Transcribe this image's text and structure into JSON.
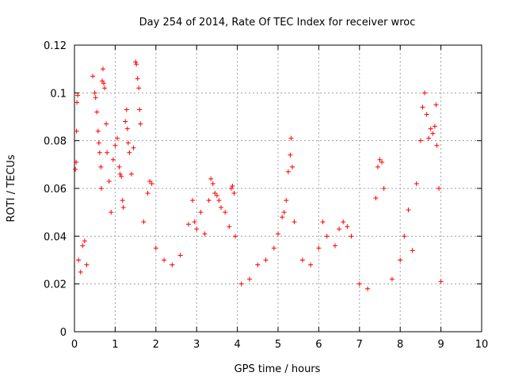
{
  "chart_data": {
    "type": "scatter",
    "title": "Day 254 of 2014, Rate Of TEC Index for receiver wroc",
    "xlabel": "GPS time / hours",
    "ylabel": "ROTI / TECUs",
    "xlim": [
      0,
      10
    ],
    "ylim": [
      0,
      0.12
    ],
    "xticks": [
      "0",
      "1",
      "2",
      "3",
      "4",
      "5",
      "6",
      "7",
      "8",
      "9",
      "10"
    ],
    "yticks": [
      "0",
      "0.02",
      "0.04",
      "0.06",
      "0.08",
      "0.1",
      "0.12"
    ],
    "grid": true,
    "marker": "+",
    "color": "#ff0000",
    "series": [
      {
        "name": "ROTI",
        "points": [
          [
            0.02,
            0.068
          ],
          [
            0.04,
            0.071
          ],
          [
            0.06,
            0.096
          ],
          [
            0.08,
            0.099
          ],
          [
            0.05,
            0.084
          ],
          [
            0.1,
            0.03
          ],
          [
            0.15,
            0.025
          ],
          [
            0.2,
            0.036
          ],
          [
            0.25,
            0.038
          ],
          [
            0.3,
            0.028
          ],
          [
            0.45,
            0.107
          ],
          [
            0.5,
            0.1
          ],
          [
            0.52,
            0.098
          ],
          [
            0.55,
            0.092
          ],
          [
            0.58,
            0.084
          ],
          [
            0.6,
            0.079
          ],
          [
            0.62,
            0.075
          ],
          [
            0.65,
            0.069
          ],
          [
            0.66,
            0.06
          ],
          [
            0.68,
            0.105
          ],
          [
            0.7,
            0.11
          ],
          [
            0.72,
            0.104
          ],
          [
            0.74,
            0.102
          ],
          [
            0.78,
            0.087
          ],
          [
            0.8,
            0.075
          ],
          [
            0.85,
            0.063
          ],
          [
            0.9,
            0.05
          ],
          [
            0.95,
            0.072
          ],
          [
            1.0,
            0.078
          ],
          [
            1.05,
            0.081
          ],
          [
            1.1,
            0.069
          ],
          [
            1.12,
            0.066
          ],
          [
            1.15,
            0.065
          ],
          [
            1.18,
            0.055
          ],
          [
            1.2,
            0.052
          ],
          [
            1.25,
            0.088
          ],
          [
            1.28,
            0.093
          ],
          [
            1.3,
            0.085
          ],
          [
            1.32,
            0.079
          ],
          [
            1.35,
            0.075
          ],
          [
            1.4,
            0.066
          ],
          [
            1.45,
            0.077
          ],
          [
            1.5,
            0.113
          ],
          [
            1.52,
            0.112
          ],
          [
            1.55,
            0.106
          ],
          [
            1.58,
            0.102
          ],
          [
            1.6,
            0.093
          ],
          [
            1.62,
            0.087
          ],
          [
            1.7,
            0.046
          ],
          [
            1.8,
            0.058
          ],
          [
            1.85,
            0.063
          ],
          [
            1.9,
            0.062
          ],
          [
            2.0,
            0.035
          ],
          [
            2.2,
            0.03
          ],
          [
            2.4,
            0.028
          ],
          [
            2.6,
            0.032
          ],
          [
            2.8,
            0.045
          ],
          [
            2.9,
            0.055
          ],
          [
            2.95,
            0.046
          ],
          [
            3.0,
            0.043
          ],
          [
            3.1,
            0.05
          ],
          [
            3.2,
            0.041
          ],
          [
            3.3,
            0.055
          ],
          [
            3.35,
            0.064
          ],
          [
            3.4,
            0.062
          ],
          [
            3.45,
            0.058
          ],
          [
            3.5,
            0.057
          ],
          [
            3.55,
            0.055
          ],
          [
            3.6,
            0.052
          ],
          [
            3.7,
            0.05
          ],
          [
            3.8,
            0.044
          ],
          [
            3.85,
            0.06
          ],
          [
            3.88,
            0.061
          ],
          [
            3.92,
            0.058
          ],
          [
            3.95,
            0.04
          ],
          [
            4.1,
            0.02
          ],
          [
            4.3,
            0.022
          ],
          [
            4.5,
            0.028
          ],
          [
            4.7,
            0.03
          ],
          [
            4.9,
            0.035
          ],
          [
            5.0,
            0.041
          ],
          [
            5.1,
            0.048
          ],
          [
            5.15,
            0.05
          ],
          [
            5.2,
            0.055
          ],
          [
            5.25,
            0.067
          ],
          [
            5.3,
            0.074
          ],
          [
            5.32,
            0.081
          ],
          [
            5.35,
            0.069
          ],
          [
            5.4,
            0.046
          ],
          [
            5.6,
            0.03
          ],
          [
            5.8,
            0.028
          ],
          [
            6.0,
            0.035
          ],
          [
            6.1,
            0.046
          ],
          [
            6.2,
            0.04
          ],
          [
            6.4,
            0.036
          ],
          [
            6.5,
            0.043
          ],
          [
            6.6,
            0.046
          ],
          [
            6.7,
            0.044
          ],
          [
            6.8,
            0.04
          ],
          [
            7.0,
            0.02
          ],
          [
            7.2,
            0.018
          ],
          [
            7.4,
            0.056
          ],
          [
            7.45,
            0.069
          ],
          [
            7.5,
            0.072
          ],
          [
            7.55,
            0.071
          ],
          [
            7.6,
            0.06
          ],
          [
            7.8,
            0.022
          ],
          [
            8.0,
            0.03
          ],
          [
            8.1,
            0.04
          ],
          [
            8.2,
            0.051
          ],
          [
            8.3,
            0.034
          ],
          [
            8.4,
            0.062
          ],
          [
            8.5,
            0.08
          ],
          [
            8.55,
            0.094
          ],
          [
            8.6,
            0.1
          ],
          [
            8.65,
            0.091
          ],
          [
            8.7,
            0.081
          ],
          [
            8.75,
            0.085
          ],
          [
            8.8,
            0.083
          ],
          [
            8.85,
            0.086
          ],
          [
            8.88,
            0.095
          ],
          [
            8.9,
            0.078
          ],
          [
            8.95,
            0.06
          ],
          [
            9.0,
            0.021
          ]
        ]
      }
    ]
  }
}
